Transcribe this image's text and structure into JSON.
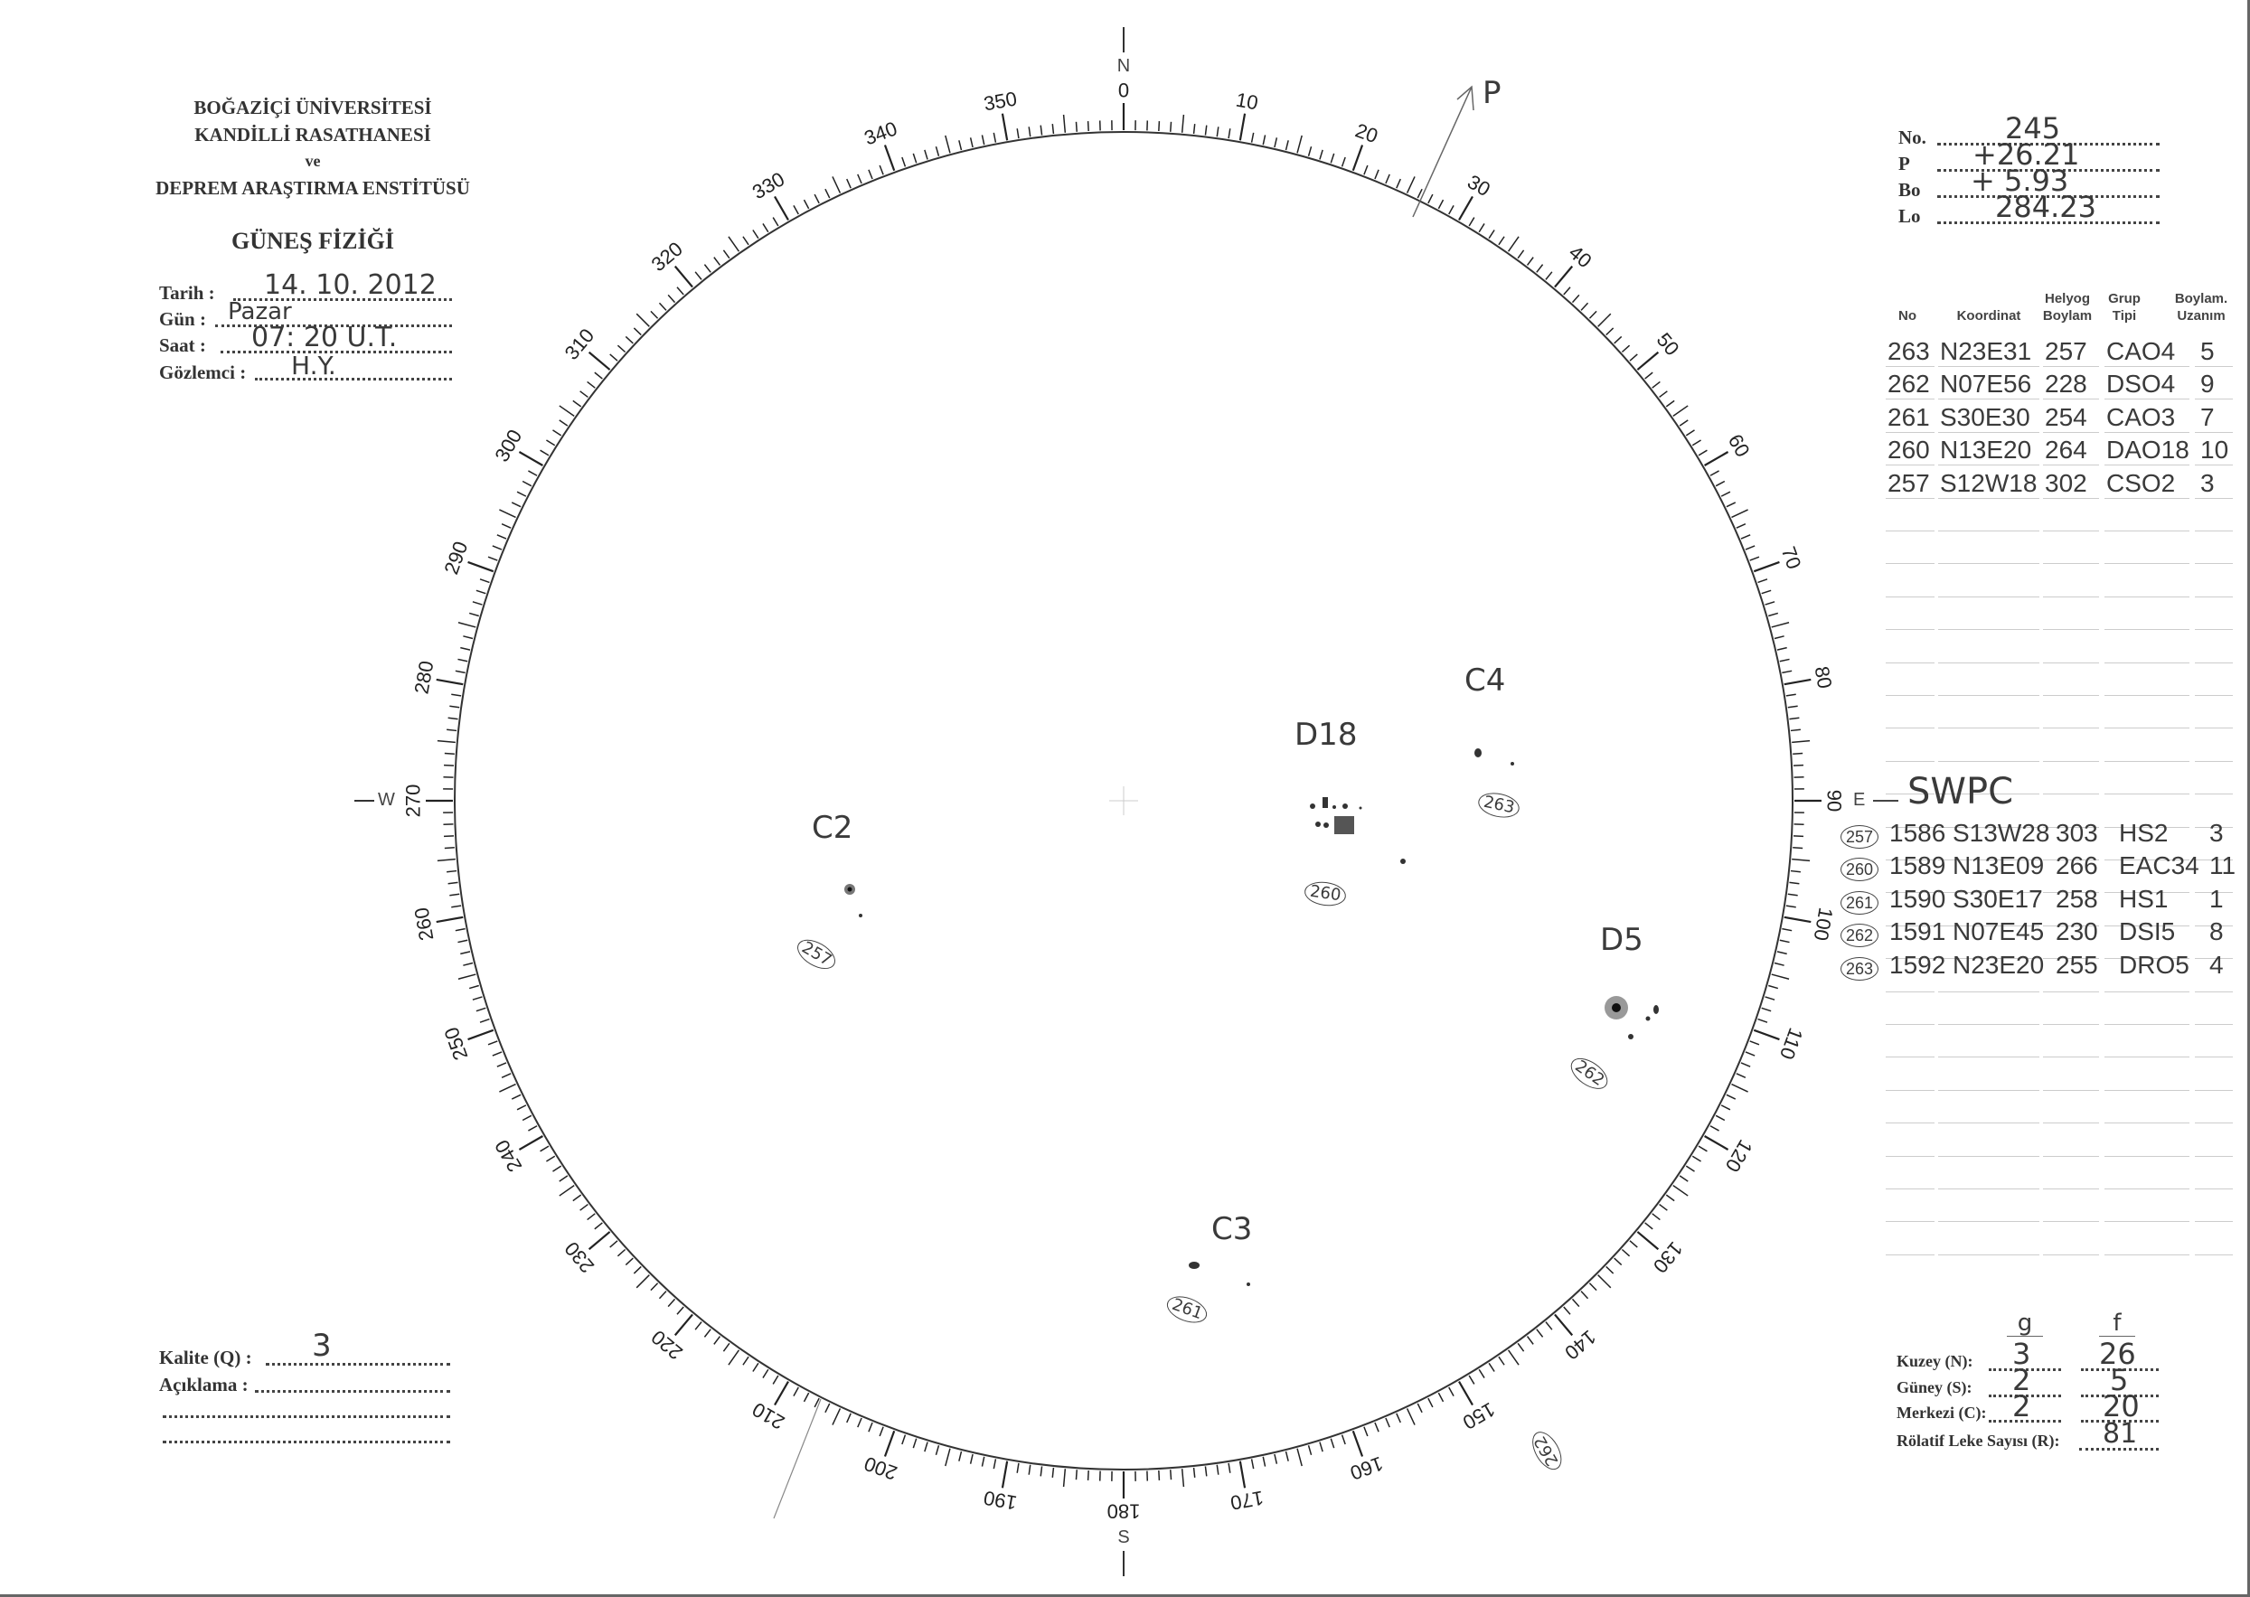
{
  "header": {
    "institution_1": "BOĞAZİÇİ ÜNİVERSİTESİ",
    "institution_2": "KANDİLLİ RASATHANESİ",
    "institution_3": "ve",
    "institution_4": "DEPREM ARAŞTIRMA ENSTİTÜSÜ",
    "department": "GÜNEŞ FİZİĞİ"
  },
  "observation": {
    "date_label": "Tarih :",
    "date": "14. 10. 2012",
    "day_label": "Gün :",
    "day": "Pazar",
    "time_label": "Saat :",
    "time": "07: 20  U.T.",
    "observer_label": "Gözlemci :",
    "observer": "H.Y."
  },
  "ephemeris": {
    "no_label": "No.",
    "no": "245",
    "p_label": "P",
    "p": "+26.21",
    "bo_label": "Bo",
    "bo": "+ 5.93",
    "lo_label": "Lo",
    "lo": "284.23"
  },
  "groups_table": {
    "headers": [
      "No",
      "Koordinat",
      "Helyog Boylam",
      "Grup Tipi",
      "Boylam. Uzanım"
    ],
    "rows": [
      [
        "263",
        "N23E31",
        "257",
        "CAO4",
        "5"
      ],
      [
        "262",
        "N07E56",
        "228",
        "DSO4",
        "9"
      ],
      [
        "261",
        "S30E30",
        "254",
        "CAO3",
        "7"
      ],
      [
        "260",
        "N13E20",
        "264",
        "DAO18",
        "10"
      ],
      [
        "257",
        "S12W18",
        "302",
        "CSO2",
        "3"
      ]
    ]
  },
  "swpc": {
    "title": "SWPC",
    "rows": [
      [
        "257",
        "1586",
        "S13W28",
        "303",
        "HS2",
        "3"
      ],
      [
        "260",
        "1589",
        "N13E09",
        "266",
        "EAC34",
        "11"
      ],
      [
        "261",
        "1590",
        "S30E17",
        "258",
        "HS1",
        "1"
      ],
      [
        "262",
        "1591",
        "N07E45",
        "230",
        "DSI5",
        "8"
      ],
      [
        "263",
        "1592",
        "N23E20",
        "255",
        "DRO5",
        "4"
      ]
    ]
  },
  "quality": {
    "label": "Kalite (Q) :",
    "value": "3",
    "comment_label": "Açıklama :"
  },
  "counts": {
    "g_header": "g",
    "f_header": "f",
    "north_label": "Kuzey (N):",
    "north_g": "3",
    "north_f": "26",
    "south_label": "Güney (S):",
    "south_g": "2",
    "south_f": "5",
    "center_label": "Merkezi (C):",
    "center_g": "2",
    "center_f": "20",
    "relative_label": "Rölatif Leke Sayısı (R):",
    "relative": "81"
  },
  "dial": {
    "labels": [
      "0",
      "10",
      "20",
      "30",
      "40",
      "50",
      "60",
      "70",
      "80",
      "90",
      "100",
      "110",
      "120",
      "130",
      "140",
      "150",
      "160",
      "170",
      "180",
      "190",
      "200",
      "210",
      "220",
      "230",
      "240",
      "250",
      "260",
      "270",
      "280",
      "290",
      "300",
      "310",
      "320",
      "330",
      "340",
      "350"
    ],
    "north": "N",
    "south": "S",
    "east": "E",
    "west": "W",
    "pole_label": "P"
  },
  "sunspots": {
    "group_labels": [
      "C4",
      "D18",
      "D5",
      "C2",
      "C3"
    ],
    "group_numbers": [
      "263",
      "260",
      "262",
      "257",
      "261",
      "262"
    ]
  }
}
